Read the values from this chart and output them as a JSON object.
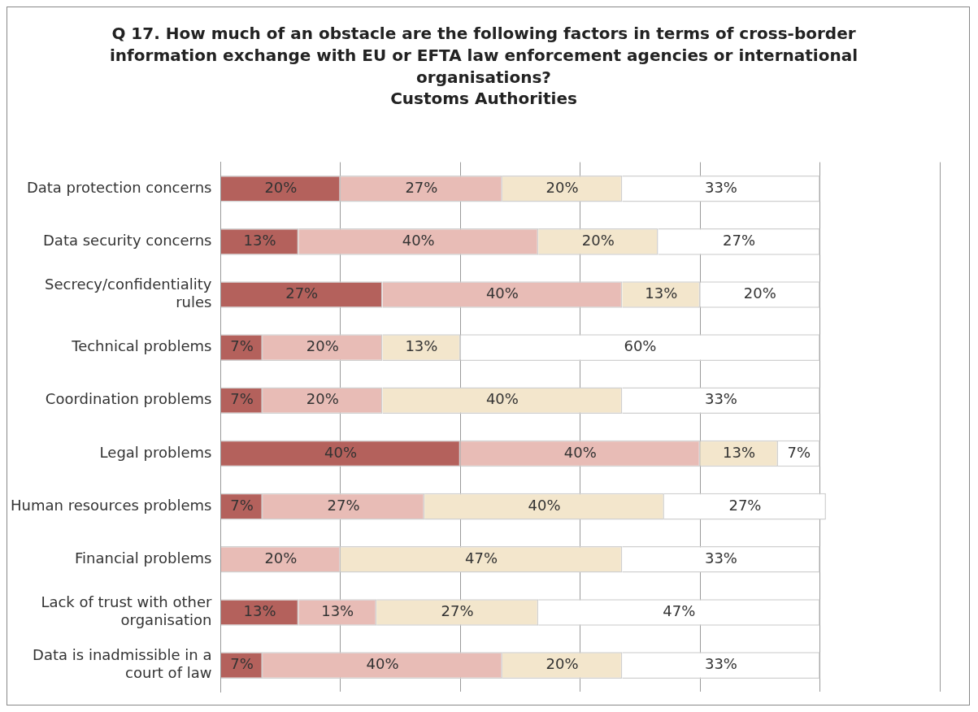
{
  "chart_data": {
    "type": "bar",
    "orientation": "horizontal",
    "stacked": true,
    "title": "Q 17. How much of an obstacle are the following factors in terms of cross-border information exchange with EU or EFTA law enforcement agencies or international organisations?",
    "subtitle": "Customs Authorities",
    "categories": [
      "Data protection concerns",
      "Data security concerns",
      "Secrecy/confidentiality rules",
      "Technical problems",
      "Coordination problems",
      "Legal problems",
      "Human resources problems",
      "Financial problems",
      "Lack of trust with other organisation",
      "Data is inadmissible in a court of law"
    ],
    "series": [
      {
        "color": "#b4615c",
        "values": [
          20,
          13,
          27,
          7,
          7,
          40,
          7,
          0,
          13,
          7
        ],
        "value_labels": [
          "20%",
          "13%",
          "27%",
          "7%",
          "7%",
          "40%",
          "7%",
          null,
          "13%",
          "7%"
        ]
      },
      {
        "color": "#e8bcb6",
        "values": [
          27,
          40,
          40,
          20,
          20,
          40,
          27,
          20,
          13,
          40
        ],
        "value_labels": [
          "27%",
          "40%",
          "40%",
          "20%",
          "20%",
          "40%",
          "27%",
          "20%",
          "13%",
          "40%"
        ]
      },
      {
        "color": "#f3e6cc",
        "values": [
          20,
          20,
          13,
          13,
          40,
          13,
          40,
          47,
          27,
          20
        ],
        "value_labels": [
          "20%",
          "20%",
          "13%",
          "13%",
          "40%",
          "13%",
          "40%",
          "47%",
          "27%",
          "20%"
        ]
      },
      {
        "color": "#ffffff",
        "values": [
          33,
          27,
          20,
          60,
          33,
          7,
          27,
          33,
          47,
          33
        ],
        "value_labels": [
          "33%",
          "27%",
          "20%",
          "60%",
          "33%",
          "7%",
          "27%",
          "33%",
          "47%",
          "33%"
        ]
      }
    ],
    "xlim": [
      0,
      120
    ],
    "xticks": [
      {
        "value": 0,
        "label": null
      },
      {
        "value": 20,
        "label": null
      },
      {
        "value": 40,
        "label": null
      },
      {
        "value": 60,
        "label": null
      },
      {
        "value": 80,
        "label": null
      },
      {
        "value": 100,
        "label": null
      },
      {
        "value": 120,
        "label": null
      }
    ],
    "grid": "x",
    "tick_labels": "y",
    "legend": false
  }
}
